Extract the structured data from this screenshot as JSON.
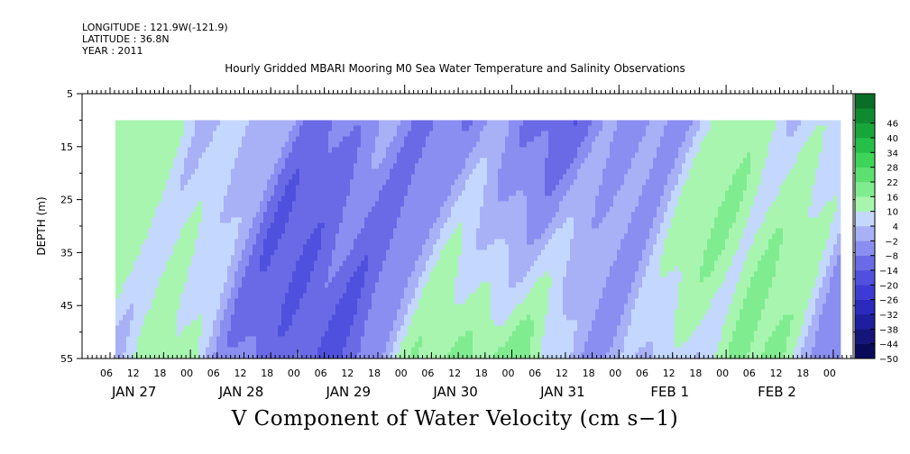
{
  "header": {
    "longitude": "LONGITUDE : 121.9W(-121.9)",
    "latitude": "LATITUDE : 36.8N",
    "year": "YEAR : 2011"
  },
  "chart_data": {
    "type": "heatmap",
    "title": "Hourly Gridded MBARI Mooring M0 Sea Water Temperature and Salinity Observations",
    "variable_label": "V Component of Water Velocity (cm s−1)",
    "ylabel": "DEPTH (m)",
    "y_ticks": [
      "5",
      "15",
      "25",
      "35",
      "45",
      "55"
    ],
    "ylim": [
      5,
      55
    ],
    "y_inverted": true,
    "data_depth_range": [
      10,
      55
    ],
    "x_hour_ticks": [
      "06",
      "12",
      "18",
      "00",
      "06",
      "12",
      "18",
      "00",
      "06",
      "12",
      "18",
      "00",
      "06",
      "12",
      "18",
      "00",
      "06",
      "12",
      "18",
      "00",
      "06",
      "12",
      "18",
      "00",
      "06",
      "12",
      "18",
      "00"
    ],
    "x_day_labels": [
      "JAN 27",
      "JAN 28",
      "JAN 29",
      "JAN 30",
      "JAN 31",
      "FEB  1",
      "FEB  2"
    ],
    "colorbar": {
      "labels": [
        "46",
        "40",
        "34",
        "28",
        "22",
        "16",
        "10",
        "4",
        "−2",
        "−8",
        "−14",
        "−20",
        "−26",
        "−32",
        "−38",
        "−44",
        "−50"
      ],
      "min": -50,
      "max": 52,
      "step": 6,
      "colors": [
        "#0a0a5a",
        "#14147a",
        "#1e1e9e",
        "#2a2abe",
        "#3c3cd4",
        "#5050de",
        "#6a6ae6",
        "#8a8ef0",
        "#a8b0f6",
        "#c4d8ff",
        "#a8f5b0",
        "#80ec90",
        "#5ce070",
        "#3ed45a",
        "#24c048",
        "#18a63a",
        "#108a30",
        "#0a6e26"
      ]
    },
    "grid": false
  }
}
